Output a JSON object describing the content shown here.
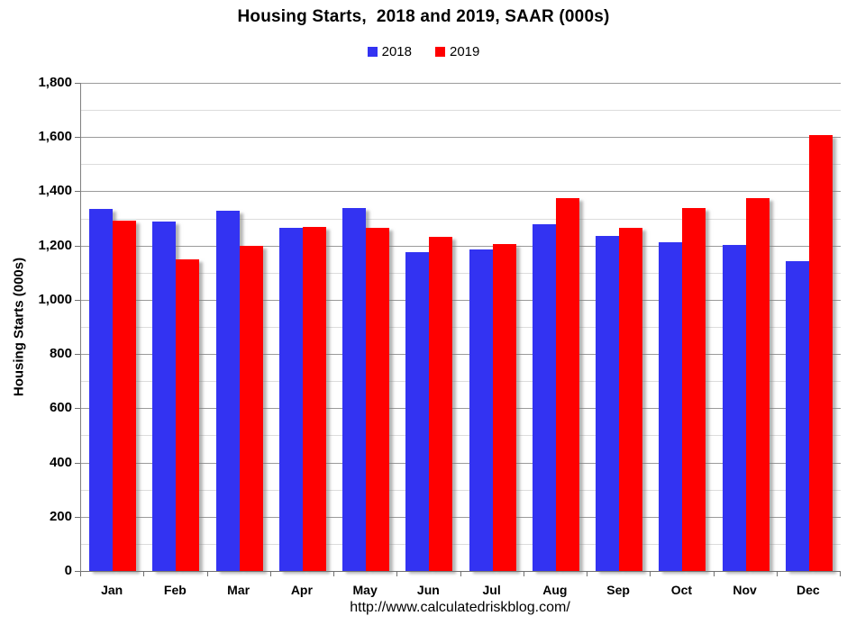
{
  "title": "Housing Starts,  2018 and 2019, SAAR (000s)",
  "legend": {
    "items": [
      {
        "label": "2018",
        "color": "#3333F2"
      },
      {
        "label": "2019",
        "color": "#FF0000"
      }
    ]
  },
  "footer_url": "http://www.calculatedriskblog.com/",
  "chart_data": {
    "type": "bar",
    "title": "Housing Starts,  2018 and 2019, SAAR (000s)",
    "categories": [
      "Jan",
      "Feb",
      "Mar",
      "Apr",
      "May",
      "Jun",
      "Jul",
      "Aug",
      "Sep",
      "Oct",
      "Nov",
      "Dec"
    ],
    "series": [
      {
        "name": "2018",
        "color": "#3333F2",
        "values": [
          1334,
          1290,
          1327,
          1265,
          1337,
          1177,
          1184,
          1279,
          1236,
          1211,
          1202,
          1142
        ]
      },
      {
        "name": "2019",
        "color": "#FF0000",
        "values": [
          1291,
          1149,
          1199,
          1270,
          1264,
          1233,
          1204,
          1375,
          1266,
          1340,
          1375,
          1608
        ]
      }
    ],
    "xlabel": "",
    "ylabel": "Housing Starts (000s)",
    "ylim": [
      0,
      1800
    ],
    "ytick_interval": 200,
    "yminor_interval": 100,
    "grid": "major and minor horizontal gridlines",
    "legend_position": "top center",
    "bar_shadow": true,
    "axis_color": "#808080",
    "major_grid_color": "#9B9B9B",
    "minor_grid_color": "#DCDCDC"
  }
}
